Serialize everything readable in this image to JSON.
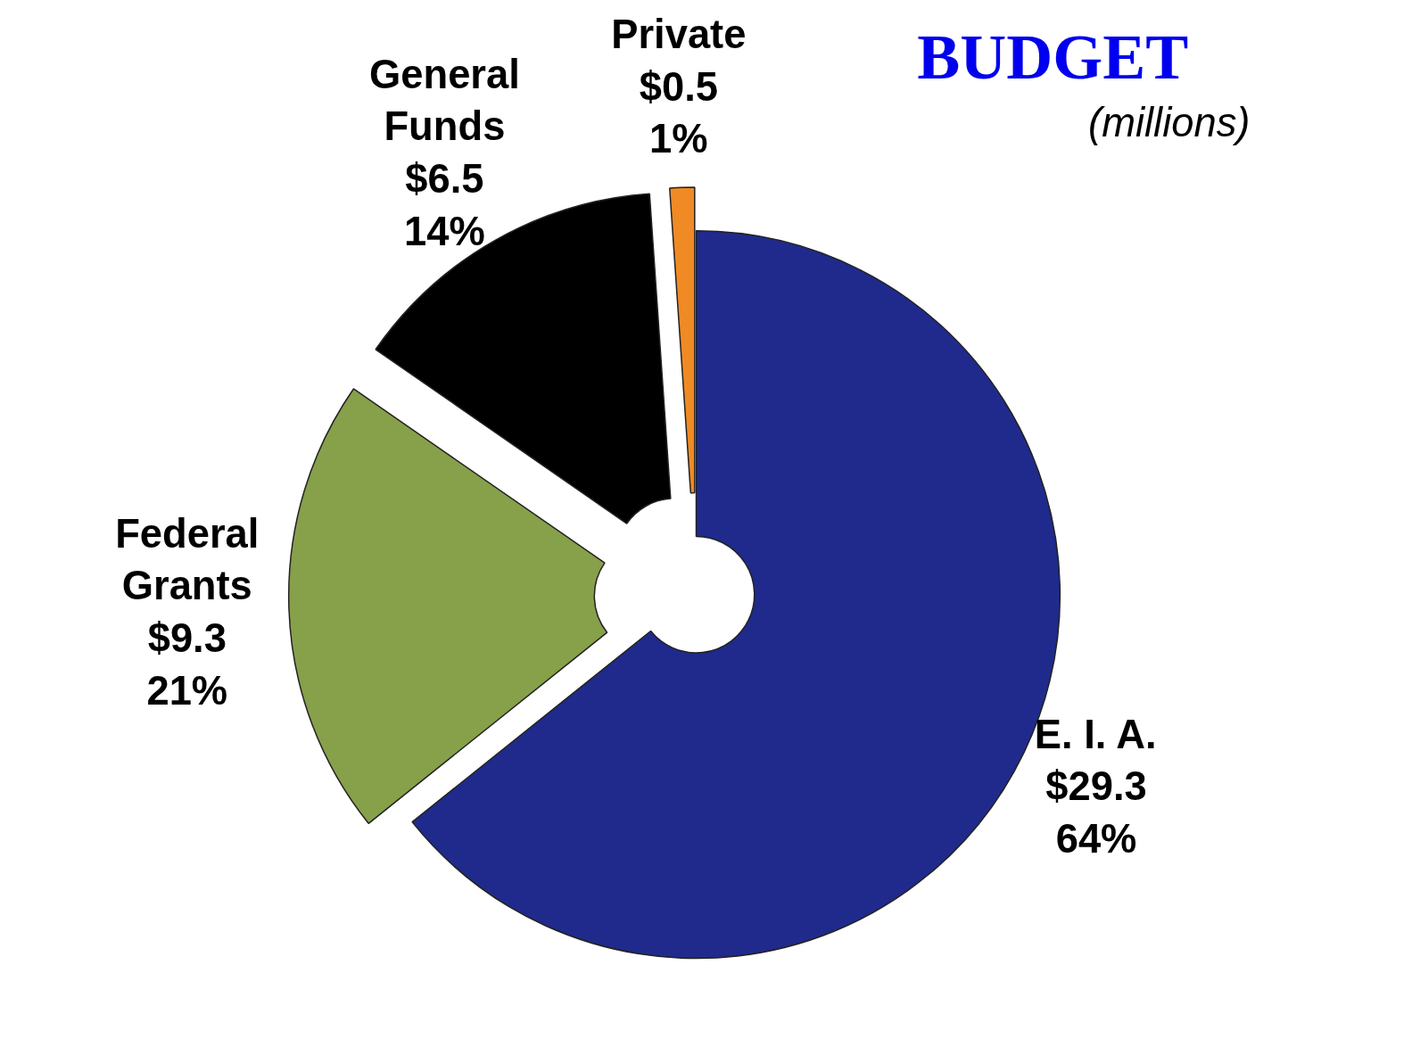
{
  "chart_data": {
    "type": "donut",
    "title": "BUDGET",
    "subtitle": "(millions)",
    "categories": [
      "E. I. A.",
      "Federal\nGrants",
      "General\nFunds",
      "Private"
    ],
    "values": [
      29.3,
      9.3,
      6.5,
      0.5
    ],
    "value_labels": [
      "$29.3\n64%",
      "$9.3\n21%",
      "$6.5\n14%",
      "$0.5\n1%"
    ],
    "colors": [
      "#1f2a8c",
      "#87a04a",
      "#000000",
      "#f08a24"
    ]
  }
}
